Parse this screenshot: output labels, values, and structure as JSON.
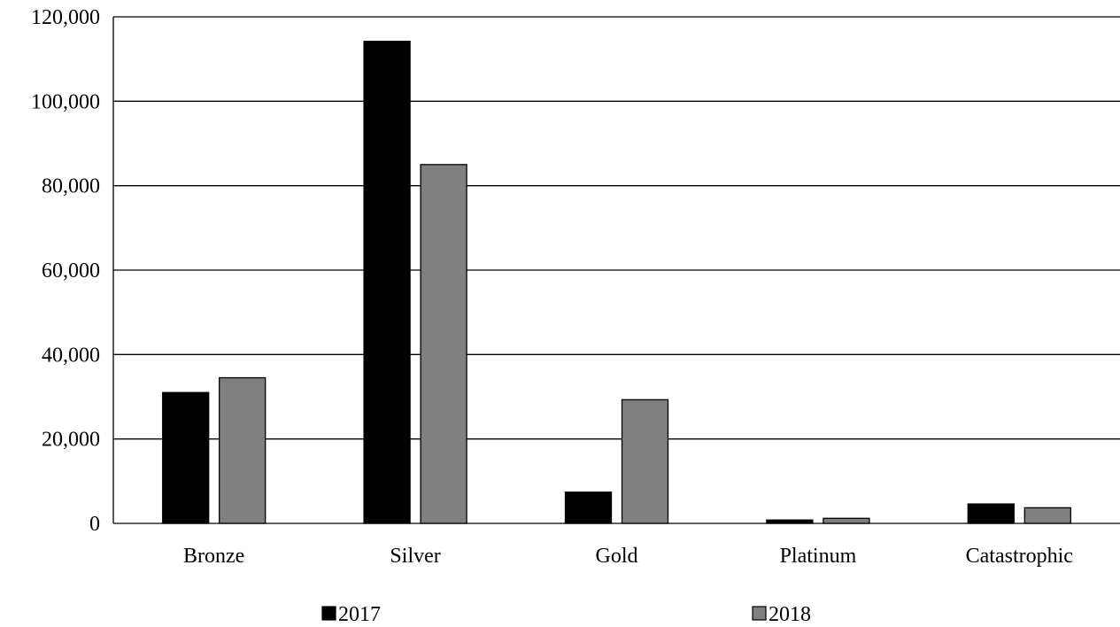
{
  "chart_data": {
    "type": "bar",
    "categories": [
      "Bronze",
      "Silver",
      "Gold",
      "Platinum",
      "Catastrophic"
    ],
    "series": [
      {
        "name": "2017",
        "values": [
          31000,
          114200,
          7400,
          800,
          4600
        ],
        "color": "#000000"
      },
      {
        "name": "2018",
        "values": [
          34500,
          85000,
          29300,
          1200,
          3700
        ],
        "color": "#808080"
      }
    ],
    "ylim": [
      0,
      120000
    ],
    "yticks": [
      0,
      20000,
      40000,
      60000,
      80000,
      100000,
      120000
    ],
    "ytick_labels": [
      "0",
      "20,000",
      "40,000",
      "60,000",
      "80,000",
      "100,000",
      "120,000"
    ],
    "grid": true,
    "legend_position": "bottom"
  }
}
